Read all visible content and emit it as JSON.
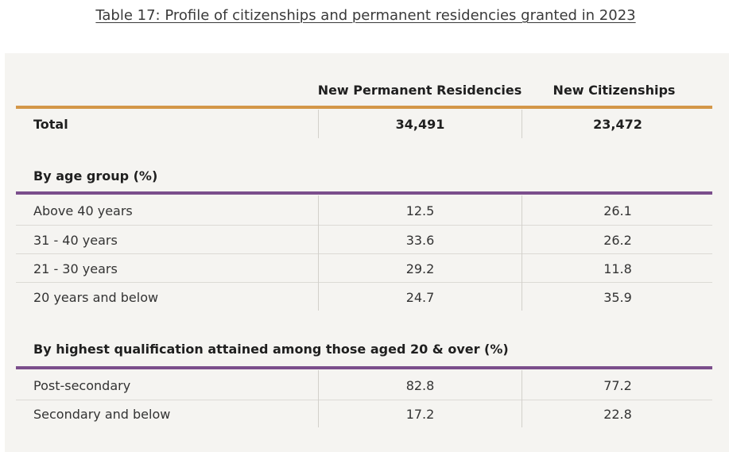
{
  "title": "Table 17: Profile of citizenships and permanent residencies granted in 2023",
  "columns": {
    "perm": "New Permanent Residencies",
    "cit": "New Citizenships"
  },
  "total": {
    "label": "Total",
    "perm": "34,491",
    "cit": "23,472"
  },
  "age_section": {
    "heading": "By age group (%)",
    "rows": [
      {
        "label": "Above 40 years",
        "perm": "12.5",
        "cit": "26.1"
      },
      {
        "label": "31 - 40 years",
        "perm": "33.6",
        "cit": "26.2"
      },
      {
        "label": "21 - 30 years",
        "perm": "29.2",
        "cit": "11.8"
      },
      {
        "label": "20 years and below",
        "perm": "24.7",
        "cit": "35.9"
      }
    ]
  },
  "qual_section": {
    "heading": "By highest qualification attained among those aged 20 & over (%)",
    "rows": [
      {
        "label": "Post-secondary",
        "perm": "82.8",
        "cit": "77.2"
      },
      {
        "label": "Secondary and below",
        "perm": "17.2",
        "cit": "22.8"
      }
    ]
  },
  "colors": {
    "header_rule": "#d49749",
    "section_rule": "#7b4e8c",
    "panel_bg": "#f5f4f1"
  }
}
